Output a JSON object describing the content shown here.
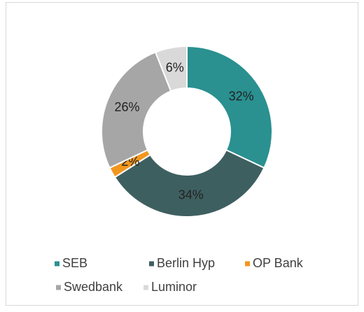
{
  "chart_data": {
    "type": "pie",
    "categories": [
      "SEB",
      "Berlin Hyp",
      "OP Bank",
      "Swedbank",
      "Luminor"
    ],
    "values": [
      32,
      34,
      2,
      26,
      6
    ],
    "value_labels": [
      "32%",
      "34%",
      "2%",
      "26%",
      "6%"
    ],
    "colors": [
      "#2a9090",
      "#3e5f60",
      "#f2961e",
      "#a6a6a6",
      "#d9d9d9"
    ],
    "donut": true,
    "legend": "bottom"
  }
}
